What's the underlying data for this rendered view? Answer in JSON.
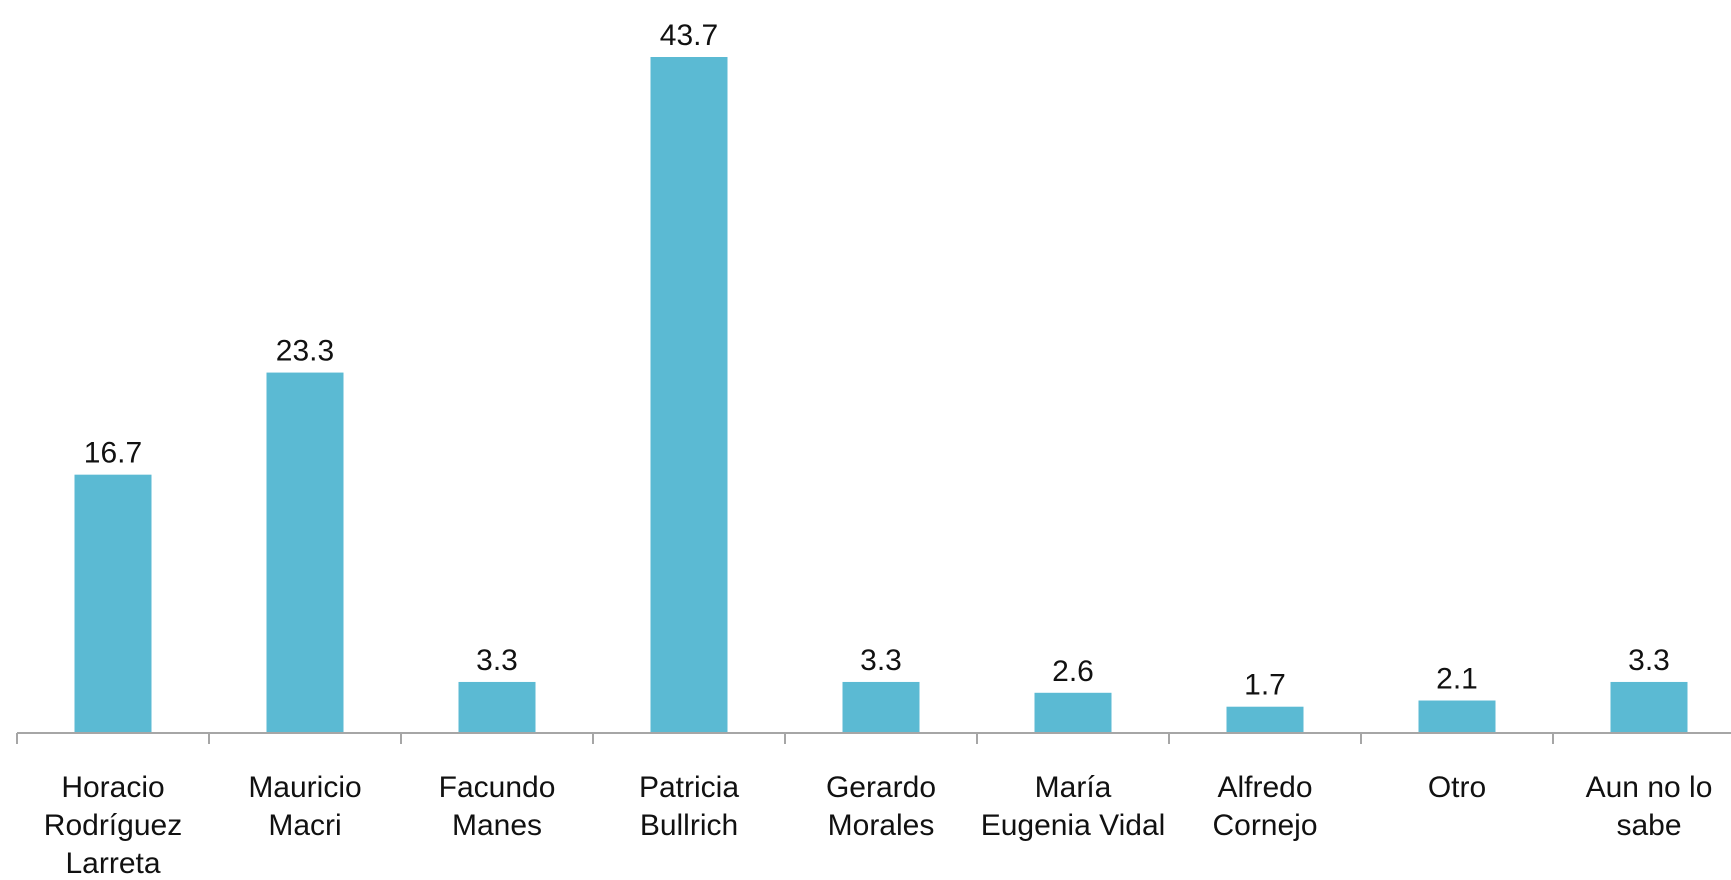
{
  "chart_data": {
    "type": "bar",
    "categories": [
      [
        "Horacio",
        "Rodríguez",
        "Larreta"
      ],
      [
        "Mauricio",
        "Macri"
      ],
      [
        "Facundo",
        "Manes"
      ],
      [
        "Patricia",
        "Bullrich"
      ],
      [
        "Gerardo",
        "Morales"
      ],
      [
        "María",
        "Eugenia Vidal"
      ],
      [
        "Alfredo",
        "Cornejo"
      ],
      [
        "Otro"
      ],
      [
        "Aun no lo",
        "sabe"
      ]
    ],
    "values": [
      16.7,
      23.3,
      3.3,
      43.7,
      3.3,
      2.6,
      1.7,
      2.1,
      3.3
    ],
    "value_labels": [
      "16.7",
      "23.3",
      "3.3",
      "43.7",
      "3.3",
      "2.6",
      "1.7",
      "2.1",
      "3.3"
    ],
    "ylim": [
      0,
      43.7
    ],
    "grid": false,
    "legend": "none",
    "colors": {
      "bar": "#5bbad3",
      "axis": "#a6a6a6"
    }
  }
}
